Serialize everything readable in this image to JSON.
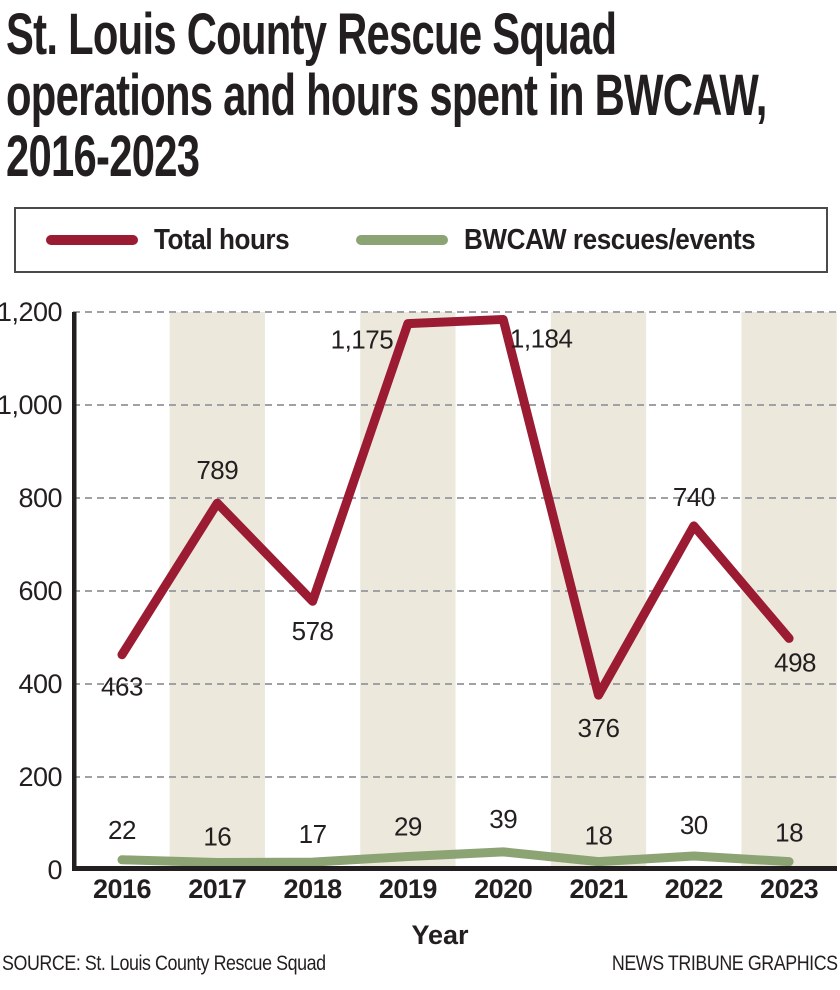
{
  "header": {
    "title_lines": [
      "St. Louis County Rescue Squad",
      "operations and hours spent in BWCAW,",
      "2016-2023"
    ]
  },
  "legend": {
    "items": [
      {
        "label": "Total hours",
        "color": "#9B1B33"
      },
      {
        "label": "BWCAW rescues/events",
        "color": "#8CA373"
      }
    ]
  },
  "chart_data": {
    "type": "line",
    "title": "St. Louis County Rescue Squad operations and hours spent in BWCAW, 2016-2023",
    "x": [
      2016,
      2017,
      2018,
      2019,
      2020,
      2021,
      2022,
      2023
    ],
    "series": [
      {
        "name": "Total hours",
        "color": "#9B1B33",
        "values": [
          463,
          789,
          578,
          1175,
          1184,
          376,
          740,
          498
        ]
      },
      {
        "name": "BWCAW rescues/events",
        "color": "#8CA373",
        "values": [
          22,
          16,
          17,
          29,
          39,
          18,
          30,
          18
        ]
      }
    ],
    "xlabel": "Year",
    "ylabel": "",
    "ylim": [
      0,
      1200
    ],
    "yticks": [
      0,
      200,
      400,
      600,
      800,
      1000,
      1200
    ],
    "grid": "horizontal-dashed",
    "grid_color": "#9FA1A4",
    "axis_color": "#231F20",
    "band_years": [
      2017,
      2019,
      2021,
      2023
    ],
    "band_color": "#ECE8DC",
    "legend_position": "top"
  },
  "footer": {
    "source": "SOURCE: St. Louis County Rescue Squad",
    "credit": "NEWS TRIBUNE GRAPHICS"
  }
}
